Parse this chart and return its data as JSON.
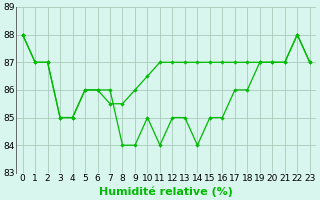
{
  "x": [
    0,
    1,
    2,
    3,
    4,
    5,
    6,
    7,
    8,
    9,
    10,
    11,
    12,
    13,
    14,
    15,
    16,
    17,
    18,
    19,
    20,
    21,
    22,
    23
  ],
  "zigzag_line": [
    88,
    87,
    87,
    85,
    85,
    86,
    86,
    86,
    84,
    84,
    85,
    84,
    85,
    85,
    84,
    85,
    85,
    86,
    86,
    87,
    87,
    87,
    88,
    87
  ],
  "trend_line": [
    88,
    87,
    87,
    85,
    85,
    86,
    86,
    85.5,
    85.5,
    86,
    86.5,
    87,
    87,
    87,
    87,
    87,
    87,
    87,
    87,
    87,
    87,
    87,
    88,
    87
  ],
  "background_color": "#d8f5ee",
  "grid_color": "#aaccbb",
  "line_color": "#00bb00",
  "xlabel": "Humidité relative (%)",
  "ylim": [
    83,
    89
  ],
  "xlim_min": -0.5,
  "xlim_max": 23.5,
  "yticks": [
    83,
    84,
    85,
    86,
    87,
    88,
    89
  ],
  "xticks": [
    0,
    1,
    2,
    3,
    4,
    5,
    6,
    7,
    8,
    9,
    10,
    11,
    12,
    13,
    14,
    15,
    16,
    17,
    18,
    19,
    20,
    21,
    22,
    23
  ],
  "xlabel_fontsize": 8,
  "tick_fontsize": 6.5
}
